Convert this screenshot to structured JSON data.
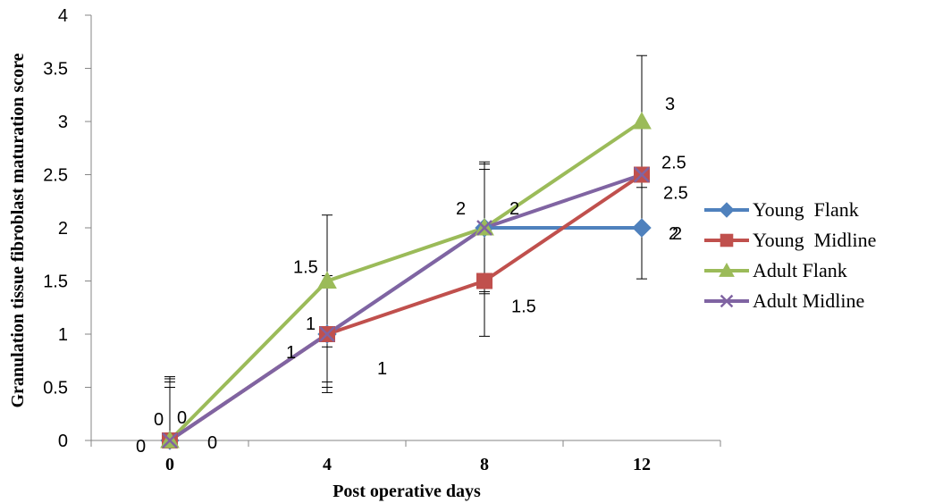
{
  "chart_data": {
    "type": "line",
    "title": "",
    "xlabel": "Post operative days",
    "ylabel": "Granulation tissue fibroblast maturation score",
    "x": [
      0,
      4,
      8,
      12
    ],
    "x_tick_labels": [
      "0",
      "4",
      "8",
      "12"
    ],
    "ylim": [
      0,
      4
    ],
    "y_ticks": [
      0,
      0.5,
      1,
      1.5,
      2,
      2.5,
      3,
      3.5,
      4
    ],
    "y_tick_labels": [
      "0",
      "0.5",
      "1",
      "1.5",
      "2",
      "2.5",
      "3",
      "3.5",
      "4"
    ],
    "grid": false,
    "legend_position": "right",
    "series": [
      {
        "name": "Young  Flank",
        "color": "#4f81bd",
        "marker": "diamond",
        "values": [
          0,
          1,
          2,
          2
        ],
        "data_labels": [
          "0",
          "1",
          "2",
          "2"
        ],
        "error_bars": [
          0.55,
          0.5,
          0.6,
          0.48
        ]
      },
      {
        "name": "Young  Midline",
        "color": "#c0504d",
        "marker": "square",
        "values": [
          0,
          1,
          1.5,
          2.5
        ],
        "data_labels": [
          "0",
          "1",
          "1.5",
          "2.5"
        ],
        "error_bars": [
          0.6,
          0.55,
          0.52,
          0.0
        ]
      },
      {
        "name": "Adult Flank",
        "color": "#9bbb59",
        "marker": "triangle",
        "values": [
          0,
          1.5,
          2,
          3
        ],
        "data_labels": [
          "0",
          "1.5",
          "2",
          "3"
        ],
        "error_bars": [
          0.5,
          0.62,
          0.62,
          0.62
        ]
      },
      {
        "name": "Adult Midline",
        "color": "#8064a2",
        "marker": "x",
        "values": [
          0,
          1,
          2,
          2.5
        ],
        "data_labels": [
          "0",
          "1",
          "2",
          "2.5"
        ],
        "error_bars": [
          0.58,
          0.45,
          0.55,
          0.0
        ]
      }
    ]
  }
}
